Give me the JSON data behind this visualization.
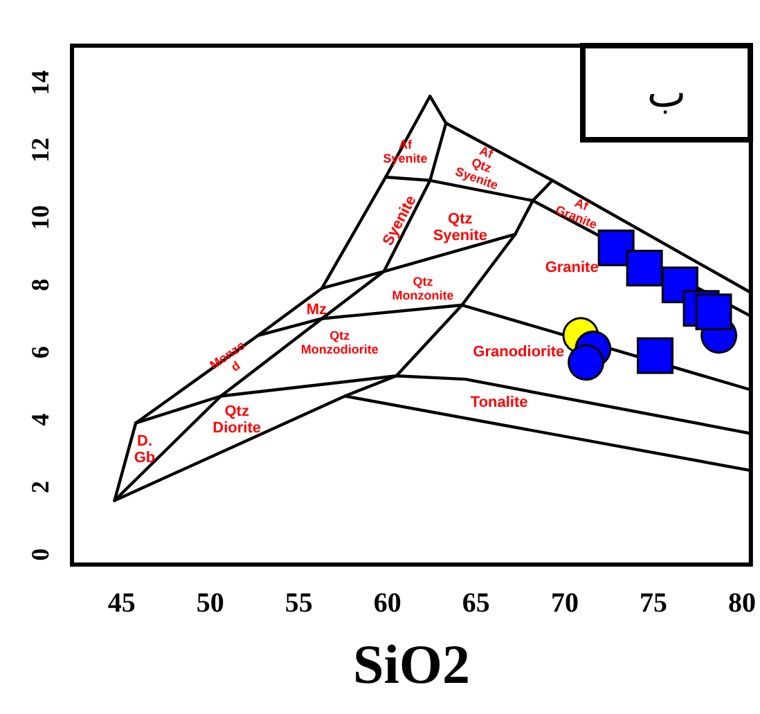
{
  "chart_data": {
    "type": "scatter",
    "xlabel": "SiO2",
    "xlim": [
      42.2,
      80.5
    ],
    "ylim": [
      -0.3,
      15.1
    ],
    "xticks": [
      45,
      50,
      55,
      60,
      65,
      70,
      75,
      80
    ],
    "yticks": [
      0,
      2,
      4,
      6,
      8,
      10,
      12,
      14
    ],
    "grid": false,
    "series": [
      {
        "type": "line",
        "color": "#000000",
        "marker": "none",
        "x": [
          45.8,
          52.7,
          56.3,
          59.9,
          62.4,
          63.3,
          69.3,
          80.4
        ],
        "values": [
          3.9,
          6.5,
          7.9,
          11.2,
          13.6,
          12.8,
          11.1,
          7.8
        ]
      },
      {
        "type": "line",
        "color": "#000000",
        "marker": "none",
        "x": [
          45.8,
          44.6,
          57.6,
          80.4
        ],
        "values": [
          3.9,
          1.6,
          4.7,
          2.5
        ]
      },
      {
        "type": "line",
        "color": "#000000",
        "marker": "none",
        "x": [
          44.6,
          50.6,
          56.3,
          59.8,
          62.4,
          63.3
        ],
        "values": [
          1.6,
          4.7,
          7.0,
          8.4,
          11.1,
          12.8
        ]
      },
      {
        "type": "line",
        "color": "#000000",
        "marker": "none",
        "x": [
          57.6,
          60.5,
          64.2,
          67.2,
          68.2,
          69.3
        ],
        "values": [
          4.7,
          5.3,
          7.4,
          9.5,
          10.5,
          11.1
        ]
      },
      {
        "type": "line",
        "color": "#000000",
        "marker": "none",
        "x": [
          45.8,
          50.6,
          60.5,
          64.4,
          80.4
        ],
        "values": [
          3.9,
          4.7,
          5.3,
          5.2,
          3.6
        ]
      },
      {
        "type": "line",
        "color": "#000000",
        "marker": "none",
        "x": [
          52.7,
          56.3,
          64.2,
          80.4
        ],
        "values": [
          6.5,
          7.0,
          7.4,
          4.9
        ]
      },
      {
        "type": "line",
        "color": "#000000",
        "marker": "none",
        "x": [
          56.3,
          59.8,
          67.2
        ],
        "values": [
          7.9,
          8.4,
          9.5
        ]
      },
      {
        "type": "line",
        "color": "#000000",
        "marker": "none",
        "x": [
          59.9,
          62.4,
          68.2,
          80.4
        ],
        "values": [
          11.2,
          11.1,
          10.5,
          7.1
        ]
      },
      {
        "type": "scatter",
        "color": "#ffff00",
        "marker": "circle",
        "x": [
          70.9
        ],
        "values": [
          6.5
        ]
      },
      {
        "type": "scatter",
        "color": "#0000ff",
        "marker": "circle",
        "x": [
          71.6,
          71.2,
          78.7
        ],
        "values": [
          6.1,
          5.7,
          6.5
        ]
      },
      {
        "type": "scatter",
        "color": "#0000ff",
        "marker": "square",
        "x": [
          72.9,
          74.5,
          76.5,
          77.7,
          78.4,
          75.1
        ],
        "values": [
          9.1,
          8.5,
          8.0,
          7.3,
          7.2,
          5.9
        ]
      }
    ],
    "annotations": [
      "Af\nSyenite",
      "Af\nQtz\nSyenite",
      "Af\nGranite",
      "Syenite",
      "Qtz\nSyenite",
      "Granite",
      "Qtz\nMonzonite",
      "Mz",
      "Qtz\nMonzodiorite",
      "Monzo\nd",
      "Granodiorite",
      "Tonalite",
      "Qtz\nDiorite",
      "D.\nGb",
      "ب"
    ]
  }
}
